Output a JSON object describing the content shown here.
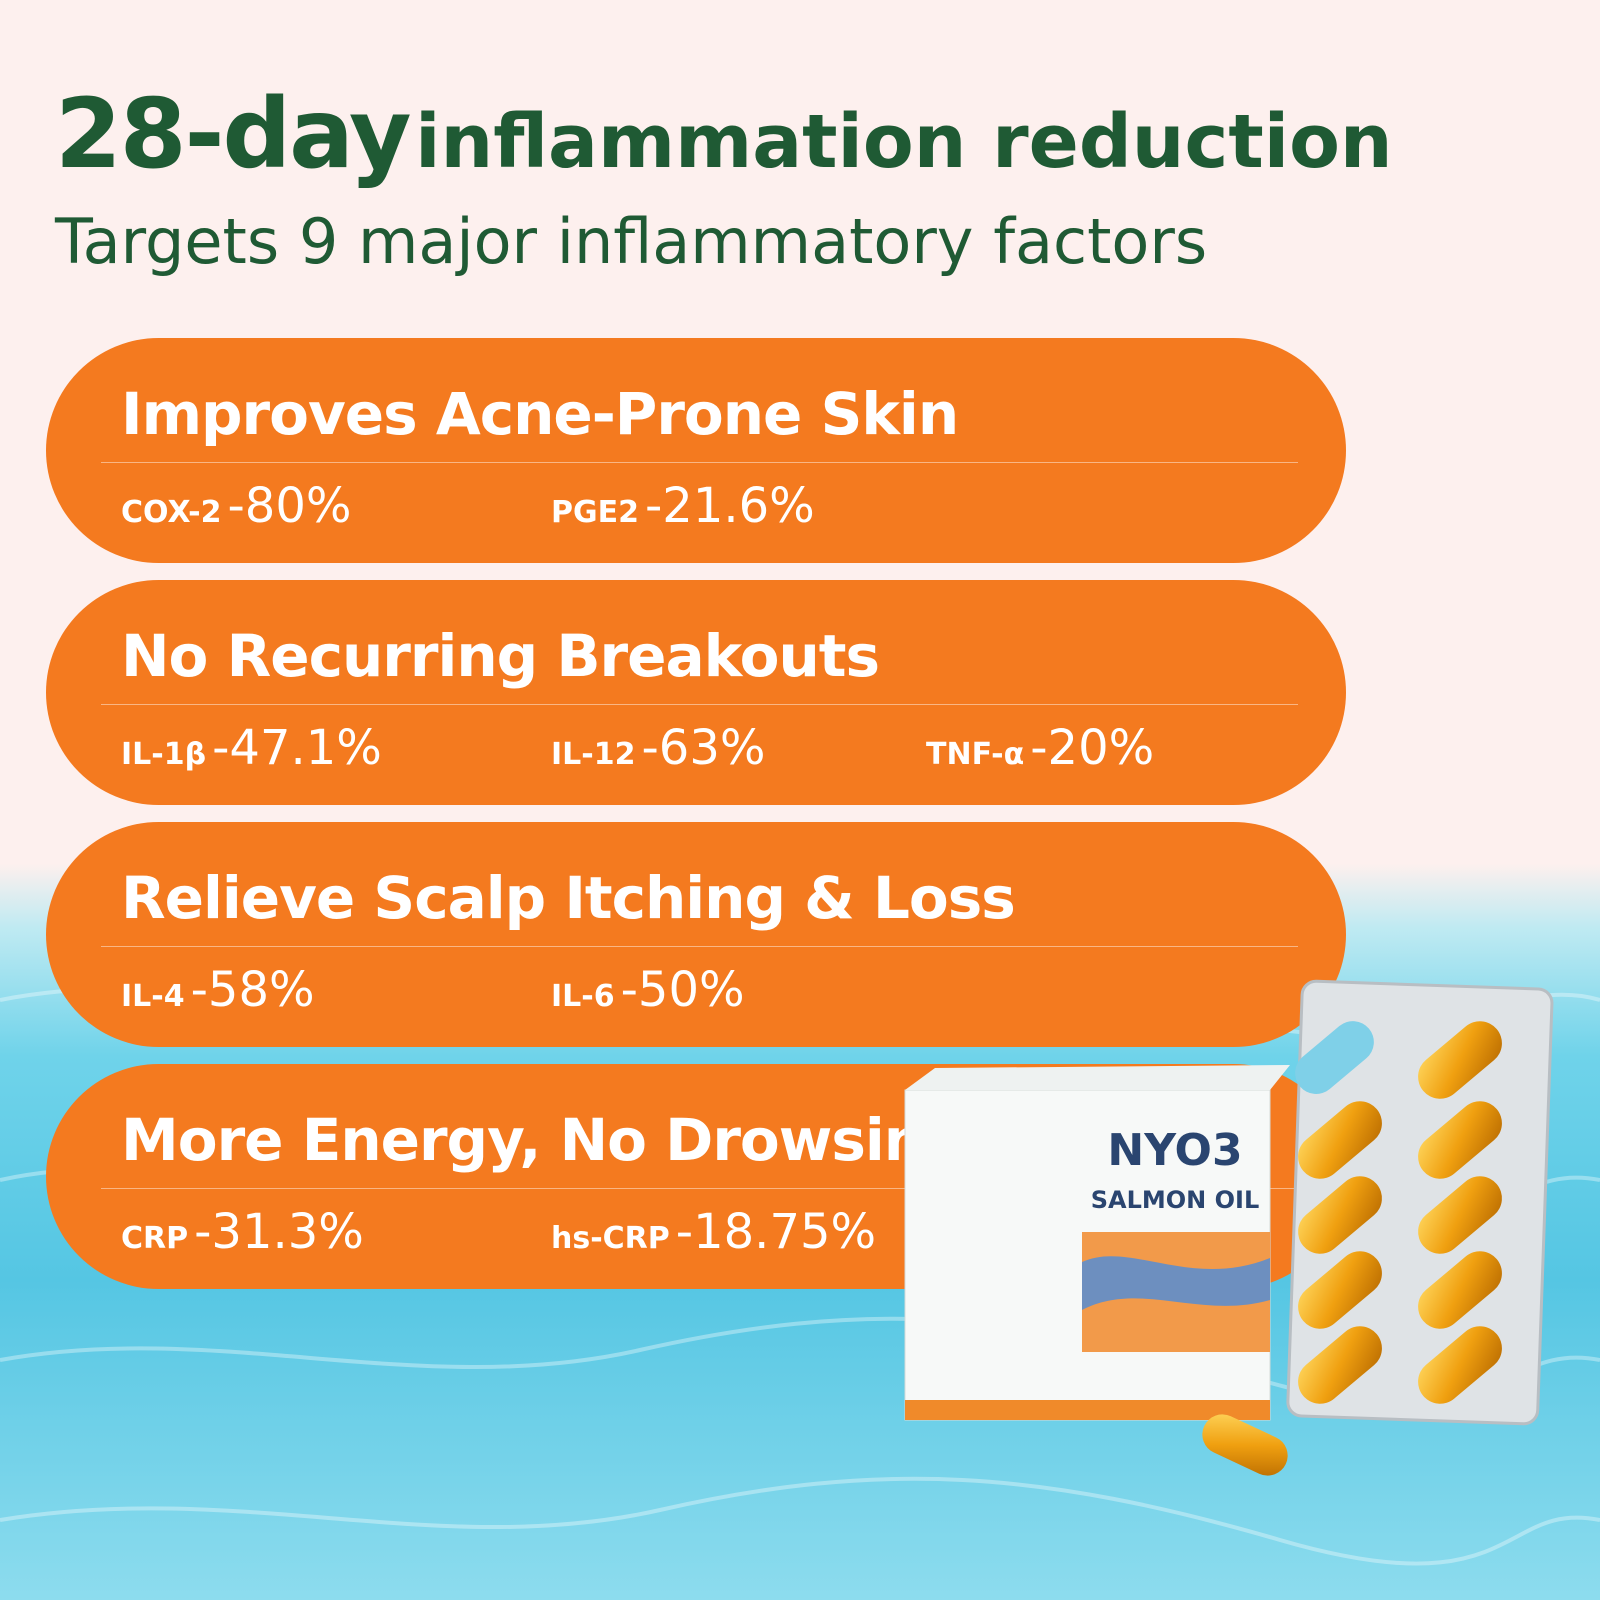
{
  "header": {
    "title_bold": "28-day",
    "title_rest": "inflammation reduction",
    "subtitle": "Targets 9 major inflammatory factors"
  },
  "cards": [
    {
      "title": "Improves Acne-Prone Skin",
      "items": [
        {
          "factor": "COX-2",
          "change": "-80%"
        },
        {
          "factor": "PGE2",
          "change": "-21.6%"
        }
      ]
    },
    {
      "title": "No Recurring Breakouts",
      "items": [
        {
          "factor": "IL-1β",
          "change": "-47.1%"
        },
        {
          "factor": "IL-12",
          "change": "-63%"
        },
        {
          "factor": "TNF-α",
          "change": "-20%"
        }
      ]
    },
    {
      "title": "Relieve Scalp Itching & Loss",
      "items": [
        {
          "factor": "IL-4",
          "change": "-58%"
        },
        {
          "factor": "IL-6",
          "change": "-50%"
        }
      ]
    },
    {
      "title": "More Energy, No Drowsiness",
      "items": [
        {
          "factor": "CRP",
          "change": "-31.3%"
        },
        {
          "factor": "hs-CRP",
          "change": "-18.75%"
        }
      ]
    }
  ],
  "product": {
    "brand": "NYO3",
    "name": "SALMON OIL"
  }
}
